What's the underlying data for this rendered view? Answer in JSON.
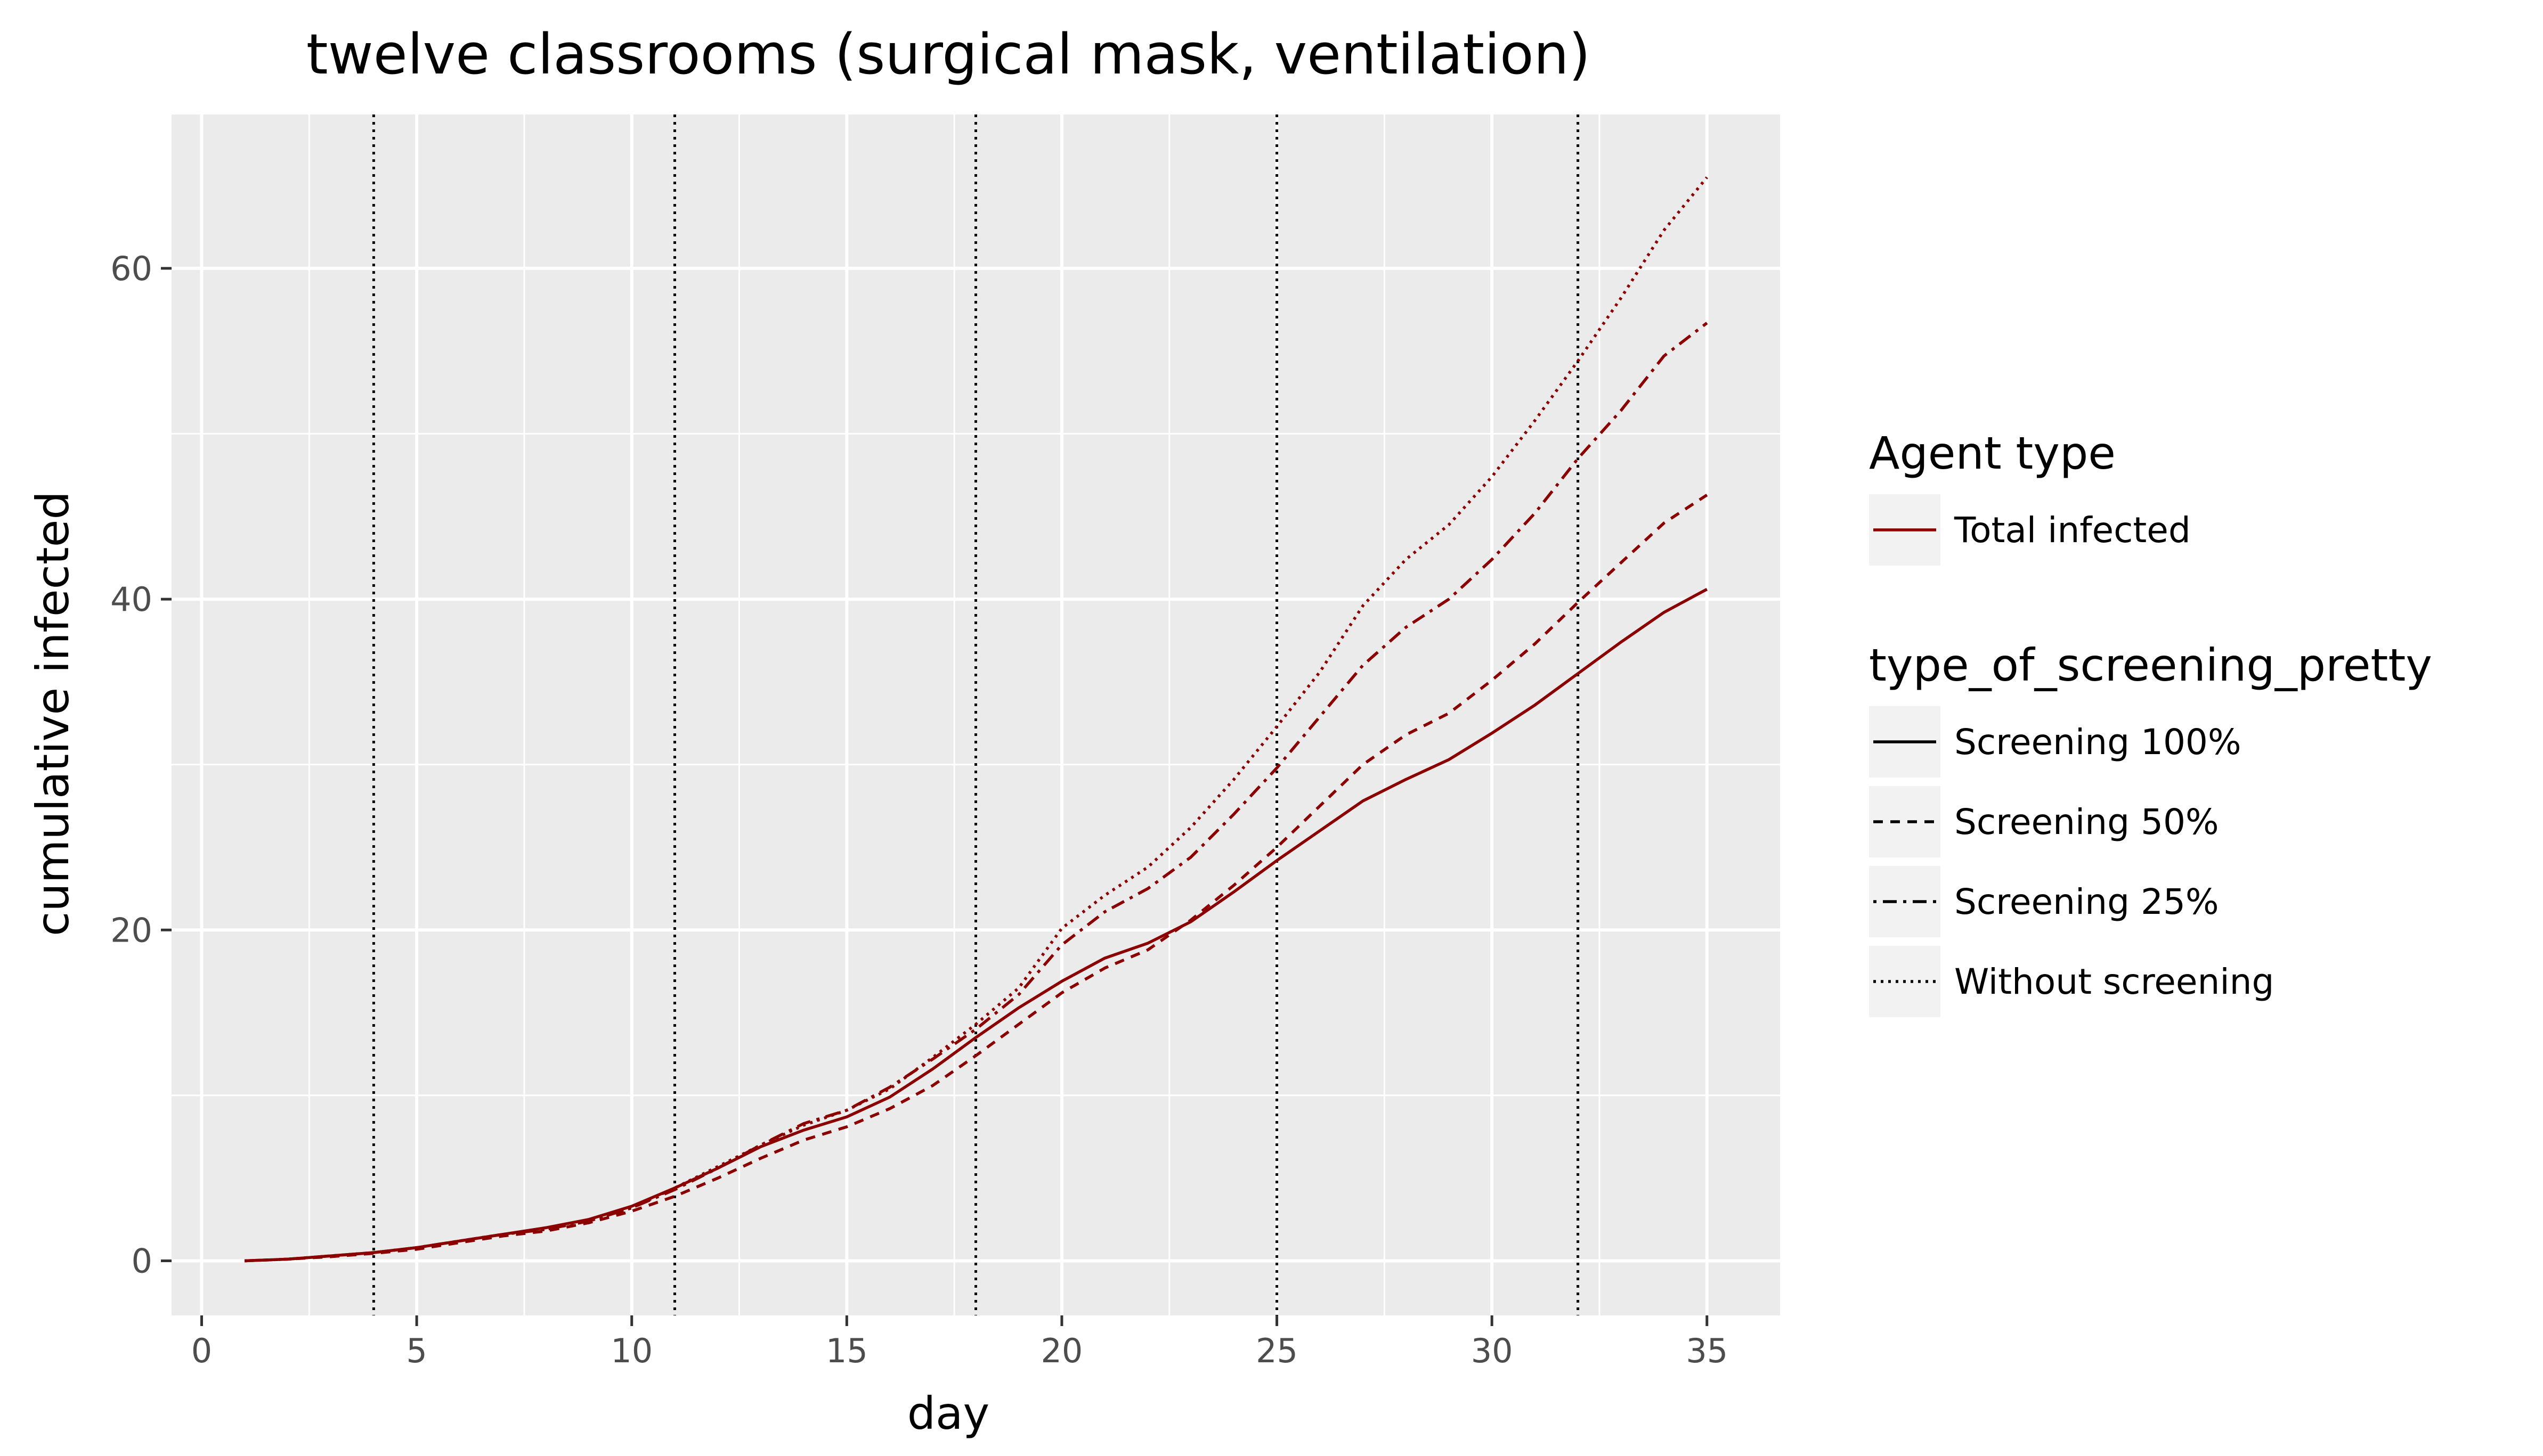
{
  "chart_data": {
    "type": "line",
    "title": "twelve classrooms (surgical mask, ventilation)",
    "xlabel": "day",
    "ylabel": "cumulative infected",
    "xlim": [
      -0.7,
      36.7
    ],
    "ylim": [
      -3.3,
      69.3
    ],
    "x_ticks": [
      0,
      5,
      10,
      15,
      20,
      25,
      30,
      35
    ],
    "y_ticks": [
      0,
      20,
      40,
      60
    ],
    "grid": true,
    "background": "#EBEBEB",
    "line_color": "#8B0000",
    "vlines": [
      4,
      11,
      18,
      25,
      32
    ],
    "x": [
      1,
      2,
      3,
      4,
      5,
      6,
      7,
      8,
      9,
      10,
      11,
      12,
      13,
      14,
      15,
      16,
      17,
      18,
      19,
      20,
      21,
      22,
      23,
      24,
      25,
      26,
      27,
      28,
      29,
      30,
      31,
      32,
      33,
      34,
      35
    ],
    "series": [
      {
        "name": "Screening 100%",
        "linetype": "solid",
        "values": [
          0,
          0.1,
          0.3,
          0.5,
          0.8,
          1.2,
          1.6,
          2.0,
          2.5,
          3.3,
          4.4,
          5.6,
          6.9,
          7.9,
          8.7,
          9.9,
          11.6,
          13.5,
          15.3,
          16.9,
          18.3,
          19.2,
          20.5,
          22.3,
          24.2,
          26.0,
          27.8,
          29.1,
          30.3,
          31.9,
          33.6,
          35.5,
          37.4,
          39.2,
          40.6
        ]
      },
      {
        "name": "Screening 50%",
        "linetype": "dashed",
        "values": [
          0,
          0.1,
          0.25,
          0.45,
          0.7,
          1.1,
          1.5,
          1.8,
          2.3,
          3.0,
          3.9,
          5.0,
          6.2,
          7.3,
          8.1,
          9.2,
          10.6,
          12.4,
          14.3,
          16.2,
          17.7,
          18.8,
          20.6,
          22.7,
          25.0,
          27.5,
          30.0,
          31.8,
          33.1,
          35.1,
          37.3,
          39.8,
          42.2,
          44.6,
          46.3
        ]
      },
      {
        "name": "Screening 25%",
        "linetype": "dotdash",
        "values": [
          0,
          0.1,
          0.3,
          0.5,
          0.8,
          1.2,
          1.6,
          1.9,
          2.4,
          3.2,
          4.3,
          5.6,
          7.0,
          8.3,
          9.1,
          10.5,
          12.2,
          14.0,
          16.1,
          19.1,
          21.1,
          22.5,
          24.4,
          27.0,
          29.8,
          32.9,
          36.0,
          38.3,
          40.0,
          42.4,
          45.2,
          48.5,
          51.4,
          54.7,
          56.7
        ]
      },
      {
        "name": "Without screening",
        "linetype": "dotted",
        "values": [
          0,
          0.1,
          0.3,
          0.5,
          0.8,
          1.2,
          1.6,
          1.9,
          2.4,
          3.2,
          4.4,
          5.7,
          7.0,
          8.2,
          9.1,
          10.4,
          12.3,
          14.3,
          16.5,
          20.1,
          22.1,
          23.8,
          26.2,
          29.1,
          32.3,
          35.6,
          39.6,
          42.4,
          44.5,
          47.4,
          50.8,
          54.4,
          58.2,
          62.3,
          65.5
        ]
      }
    ],
    "legend": {
      "placement": "right",
      "groups": [
        {
          "title": "Agent type",
          "items": [
            {
              "label": "Total infected",
              "linetype": "solid",
              "color": "#8B0000"
            }
          ]
        },
        {
          "title": "type_of_screening_pretty",
          "items": [
            {
              "label": "Screening 100%",
              "linetype": "solid",
              "color": "#000000"
            },
            {
              "label": "Screening 50%",
              "linetype": "dashed",
              "color": "#000000"
            },
            {
              "label": "Screening 25%",
              "linetype": "dotdash",
              "color": "#000000"
            },
            {
              "label": "Without screening",
              "linetype": "dotted",
              "color": "#000000"
            }
          ]
        }
      ]
    }
  }
}
